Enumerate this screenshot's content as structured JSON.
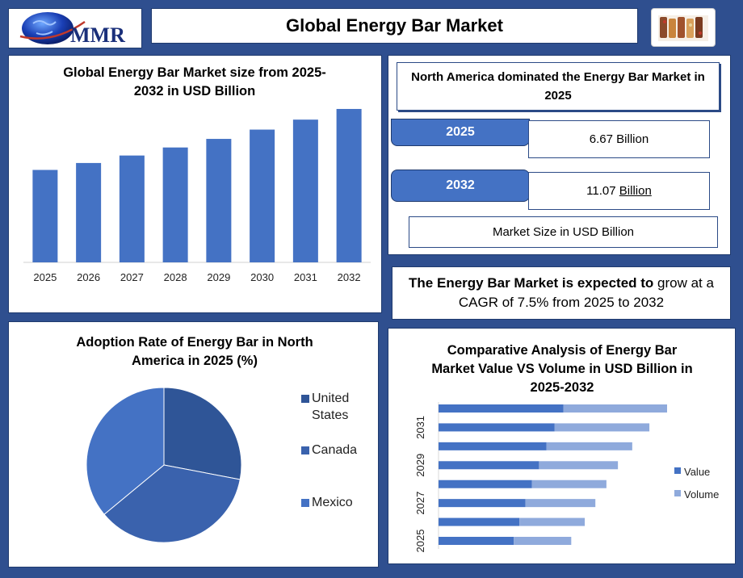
{
  "header": {
    "logo_text": "MMR",
    "title": "Global Energy Bar Market"
  },
  "colors": {
    "background": "#2f4f8f",
    "bar": "#4472c4",
    "pie_us": "#2f5597",
    "pie_ca": "#3a62ad",
    "pie_mx": "#4472c4",
    "value": "#4472c4",
    "volume": "#8faadc"
  },
  "kpi": {
    "header": "North America dominated the Energy Bar Market in 2025",
    "year1": "2025",
    "value1": "6.67 Billion",
    "year2": "2032",
    "value2_num": "11.07",
    "value2_unit": "Billion",
    "caption": "Market Size in USD Billion"
  },
  "cagr": {
    "bold": "The Energy Bar Market is expected to",
    "rest": " grow at a CAGR of 7.5% from 2025 to 2032"
  },
  "chart_data": [
    {
      "type": "bar",
      "title": "Global Energy Bar Market size from 2025-2032 in USD Billion",
      "categories": [
        "2025",
        "2026",
        "2027",
        "2028",
        "2029",
        "2030",
        "2031",
        "2032"
      ],
      "values": [
        6.67,
        7.17,
        7.71,
        8.29,
        8.91,
        9.58,
        10.3,
        11.07
      ],
      "ylim": [
        0,
        12
      ]
    },
    {
      "type": "pie",
      "title": "Adoption Rate of Energy Bar in North America in 2025 (%)",
      "labels": [
        "United States",
        "Canada",
        "Mexico"
      ],
      "values": [
        28,
        36,
        36
      ],
      "legend": "right"
    },
    {
      "type": "bar",
      "orientation": "horizontal",
      "stacked": true,
      "title": "Comparative Analysis of Energy Bar Market Value VS Volume in USD Billion in 2025-2032",
      "categories": [
        "2025",
        "2026",
        "2027",
        "2028",
        "2029",
        "2030",
        "2031",
        "2032"
      ],
      "tick_labels": [
        "2025",
        "2027",
        "2029",
        "2031"
      ],
      "series": [
        {
          "name": "Value",
          "values": [
            6.67,
            7.17,
            7.71,
            8.29,
            8.91,
            9.58,
            10.3,
            11.07
          ]
        },
        {
          "name": "Volume",
          "values": [
            5.1,
            5.8,
            6.2,
            6.6,
            7.0,
            7.6,
            8.4,
            9.2
          ]
        }
      ],
      "legend": "right"
    }
  ]
}
